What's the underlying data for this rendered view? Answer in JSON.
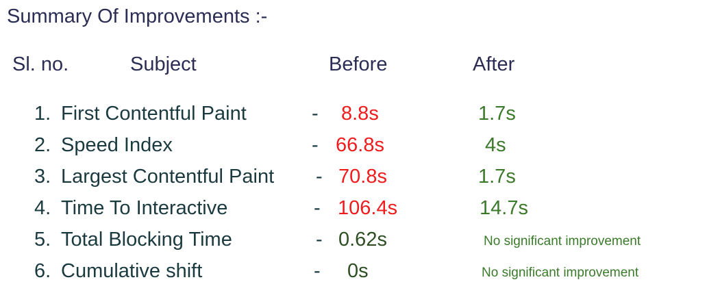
{
  "title": "Summary Of Improvements :-",
  "headers": {
    "sl_no": "Sl. no.",
    "subject": "Subject",
    "before": "Before",
    "after": "After"
  },
  "rows": [
    {
      "num": "1.",
      "subject": "First Contentful Paint",
      "dash": "-",
      "before": "8.8s",
      "after": "1.7s"
    },
    {
      "num": "2.",
      "subject": "Speed Index",
      "dash": "-",
      "before": "66.8s",
      "after": "4s"
    },
    {
      "num": "3.",
      "subject": "Largest Contentful Paint",
      "dash": "-",
      "before": "70.8s",
      "after": "1.7s"
    },
    {
      "num": "4.",
      "subject": "Time To Interactive",
      "dash": "-",
      "before": "106.4s",
      "after": "14.7s"
    },
    {
      "num": "5.",
      "subject": "Total Blocking Time",
      "dash": "-",
      "before": "0.62s",
      "after": "No significant improvement"
    },
    {
      "num": "6.",
      "subject": "Cumulative shift",
      "dash": "-",
      "before": "0s",
      "after": "No significant improvement"
    }
  ],
  "colors": {
    "heading": "#2b2d55",
    "body_text": "#1a3a40",
    "before_worse": "#ee1c1c",
    "before_unchanged": "#2e4f22",
    "after_improved": "#3a7a2a"
  }
}
